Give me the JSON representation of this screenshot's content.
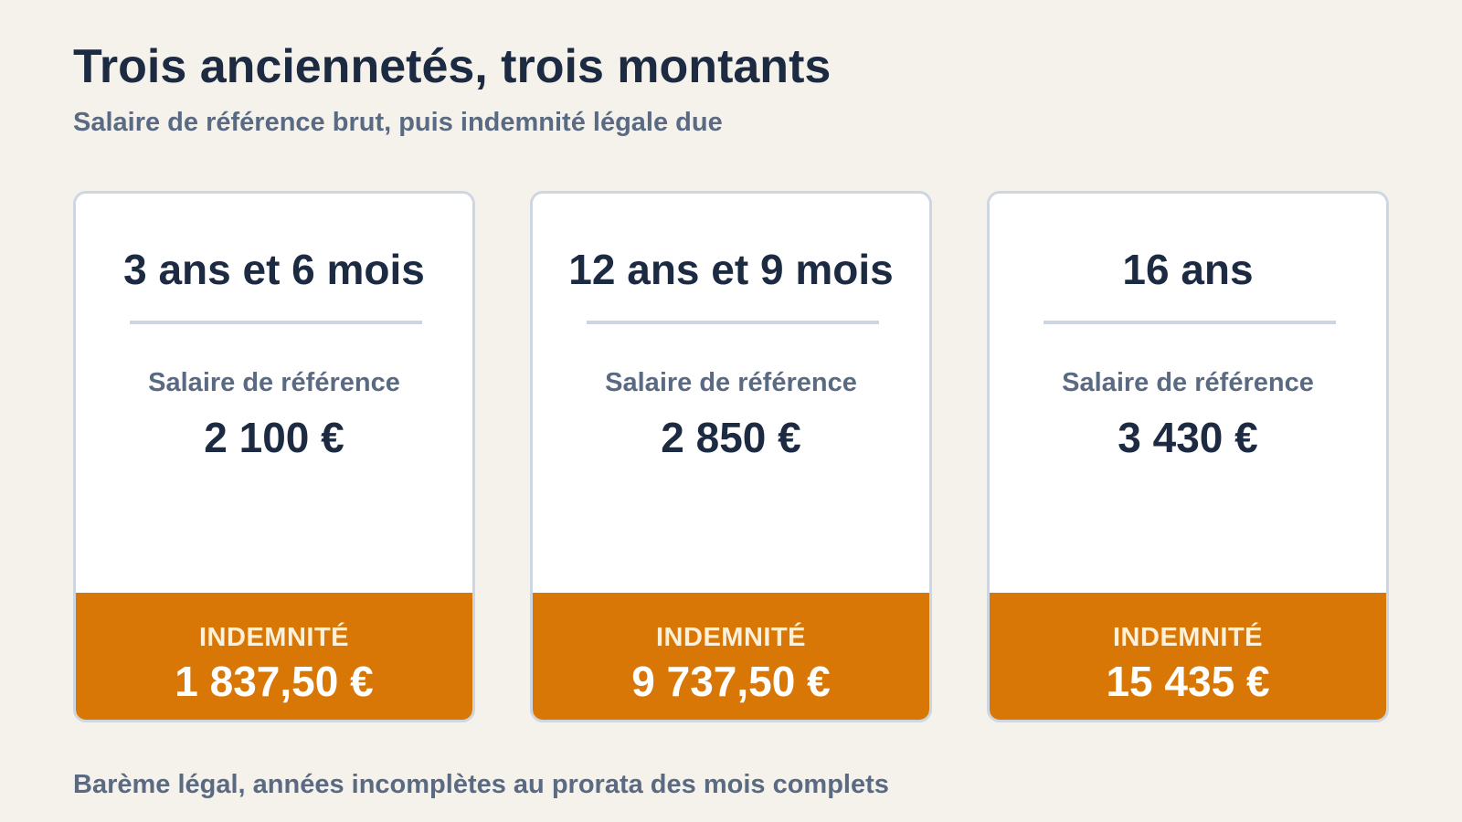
{
  "header": {
    "title": "Trois anciennetés, trois montants",
    "subtitle": "Salaire de référence brut, puis indemnité légale due"
  },
  "cards": [
    {
      "duration": "3 ans et 6 mois",
      "salary_label": "Salaire de référence",
      "salary_value": "2 100 €",
      "indemnity_label": "INDEMNITÉ",
      "indemnity_value": "1 837,50 €"
    },
    {
      "duration": "12 ans et 9 mois",
      "salary_label": "Salaire de référence",
      "salary_value": "2 850 €",
      "indemnity_label": "INDEMNITÉ",
      "indemnity_value": "9 737,50 €"
    },
    {
      "duration": "16 ans",
      "salary_label": "Salaire de référence",
      "salary_value": "3 430 €",
      "indemnity_label": "INDEMNITÉ",
      "indemnity_value": "15 435 €"
    }
  ],
  "footnote": "Barème légal, années incomplètes au prorata des mois complets",
  "colors": {
    "background": "#f5f2ec",
    "text_primary": "#1c2a42",
    "text_secondary": "#5a6a82",
    "card_border": "#cdd6e1",
    "accent": "#d97706"
  }
}
